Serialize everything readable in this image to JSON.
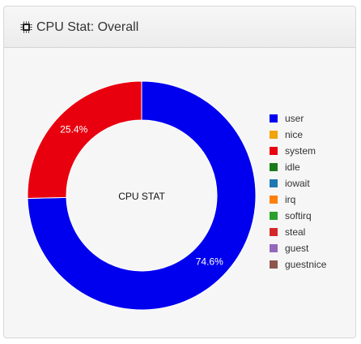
{
  "panel": {
    "title": "CPU Stat: Overall",
    "icon": "cpu-chip-icon"
  },
  "chart_data": {
    "type": "pie",
    "center_label": "CPU STAT",
    "categories": [
      "user",
      "nice",
      "system",
      "idle",
      "iowait",
      "irq",
      "softirq",
      "steal",
      "guest",
      "guestnice"
    ],
    "values": [
      74.6,
      0,
      25.4,
      0,
      0,
      0,
      0,
      0,
      0,
      0
    ],
    "value_labels": [
      "74.6%",
      "",
      "25.4%",
      "",
      "",
      "",
      "",
      "",
      "",
      ""
    ],
    "colors": [
      "#0000ee",
      "#f0a30a",
      "#e8000f",
      "#1a7a1a",
      "#1f77b4",
      "#ff7f0e",
      "#2ca02c",
      "#d62728",
      "#9467bd",
      "#8c564b"
    ],
    "legend_position": "right"
  }
}
